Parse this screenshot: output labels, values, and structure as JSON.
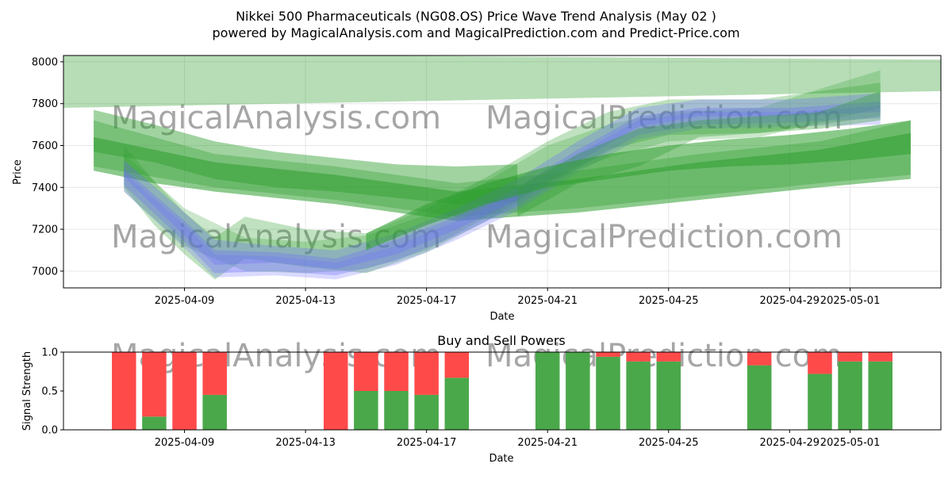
{
  "header": {
    "title": "Nikkei 500 Pharmaceuticals (NG08.OS) Price Wave Trend Analysis (May 02 )",
    "subtitle": "powered by MagicalAnalysis.com and MagicalPrediction.com and Predict-Price.com"
  },
  "watermarks": [
    "MagicalAnalysis.com",
    "MagicalPrediction.com"
  ],
  "colors": {
    "green_band": "#2e9e2e",
    "blue_band": "#6a6aff",
    "buy": "#4aa84a",
    "sell": "#ff4a4a",
    "grid": "#e6e6e6"
  },
  "chart_data": [
    {
      "type": "area",
      "title": "",
      "xlabel": "Date",
      "ylabel": "Price",
      "x_ticks": [
        "2025-04-09",
        "2025-04-13",
        "2025-04-17",
        "2025-04-21",
        "2025-04-25",
        "2025-04-29",
        "2025-05-01"
      ],
      "y_ticks": [
        7000,
        7200,
        7400,
        7600,
        7800,
        8000
      ],
      "xlim": [
        "2025-04-05",
        "2025-05-04"
      ],
      "ylim": [
        6920,
        8030
      ],
      "grid": true,
      "series": [
        {
          "kind": "green",
          "opacity": 0.35,
          "x": [
            "2025-04-05",
            "2025-05-04"
          ],
          "upper": [
            8040,
            8010
          ],
          "lower": [
            7780,
            7860
          ]
        },
        {
          "kind": "green",
          "opacity": 0.55,
          "x": [
            "2025-04-06",
            "2025-04-08",
            "2025-04-10",
            "2025-04-14",
            "2025-04-18",
            "2025-04-22",
            "2025-04-26",
            "2025-04-30",
            "2025-05-03"
          ],
          "upper": [
            7640,
            7580,
            7520,
            7460,
            7380,
            7440,
            7520,
            7580,
            7660
          ],
          "lower": [
            7480,
            7420,
            7380,
            7320,
            7240,
            7280,
            7340,
            7400,
            7440
          ]
        },
        {
          "kind": "green",
          "opacity": 0.35,
          "x": [
            "2025-04-06",
            "2025-04-08",
            "2025-04-10",
            "2025-04-14",
            "2025-04-18",
            "2025-04-22",
            "2025-04-26",
            "2025-04-30",
            "2025-05-03"
          ],
          "upper": [
            7720,
            7640,
            7560,
            7500,
            7420,
            7480,
            7560,
            7620,
            7720
          ],
          "lower": [
            7500,
            7450,
            7400,
            7340,
            7260,
            7300,
            7360,
            7420,
            7460
          ]
        },
        {
          "kind": "green",
          "opacity": 0.45,
          "x": [
            "2025-04-06",
            "2025-04-08",
            "2025-04-10",
            "2025-04-12",
            "2025-04-14",
            "2025-04-16",
            "2025-04-18",
            "2025-04-20"
          ],
          "upper": [
            7770,
            7700,
            7620,
            7570,
            7540,
            7510,
            7500,
            7510
          ],
          "lower": [
            7570,
            7520,
            7440,
            7400,
            7380,
            7350,
            7320,
            7330
          ]
        },
        {
          "kind": "green",
          "opacity": 0.3,
          "x": [
            "2025-04-07",
            "2025-04-08",
            "2025-04-09",
            "2025-04-10",
            "2025-04-11",
            "2025-04-13",
            "2025-04-15",
            "2025-04-17",
            "2025-04-19",
            "2025-04-21",
            "2025-04-23",
            "2025-04-25",
            "2025-04-28",
            "2025-05-02"
          ],
          "upper": [
            7600,
            7430,
            7280,
            7160,
            7260,
            7200,
            7180,
            7300,
            7450,
            7620,
            7760,
            7820,
            7820,
            7900
          ],
          "lower": [
            7400,
            7220,
            7080,
            6960,
            7060,
            7020,
            6990,
            7090,
            7240,
            7420,
            7580,
            7650,
            7660,
            7740
          ]
        },
        {
          "kind": "green",
          "opacity": 0.25,
          "x": [
            "2025-04-07",
            "2025-04-09",
            "2025-04-11",
            "2025-04-13",
            "2025-04-15",
            "2025-04-17",
            "2025-04-19",
            "2025-04-21",
            "2025-04-23",
            "2025-04-25",
            "2025-04-28",
            "2025-05-02"
          ],
          "upper": [
            7560,
            7300,
            7160,
            7140,
            7170,
            7270,
            7430,
            7600,
            7700,
            7760,
            7780,
            7960
          ],
          "lower": [
            7380,
            7120,
            7000,
            6990,
            7010,
            7100,
            7260,
            7430,
            7540,
            7620,
            7640,
            7780
          ]
        },
        {
          "kind": "blue",
          "opacity": 0.3,
          "x": [
            "2025-04-07",
            "2025-04-09",
            "2025-04-10",
            "2025-04-12",
            "2025-04-14",
            "2025-04-16",
            "2025-04-18",
            "2025-04-20",
            "2025-04-22",
            "2025-04-24",
            "2025-04-26",
            "2025-04-29",
            "2025-05-02"
          ],
          "upper": [
            7530,
            7280,
            7150,
            7120,
            7100,
            7180,
            7300,
            7440,
            7620,
            7780,
            7820,
            7820,
            7850
          ],
          "lower": [
            7450,
            7170,
            7030,
            7040,
            7010,
            7080,
            7200,
            7340,
            7520,
            7690,
            7740,
            7740,
            7760
          ]
        },
        {
          "kind": "blue",
          "opacity": 0.3,
          "x": [
            "2025-04-07",
            "2025-04-09",
            "2025-04-10",
            "2025-04-12",
            "2025-04-14",
            "2025-04-16",
            "2025-04-18",
            "2025-04-20",
            "2025-04-22",
            "2025-04-24",
            "2025-04-26",
            "2025-04-29",
            "2025-05-02"
          ],
          "upper": [
            7490,
            7240,
            7100,
            7090,
            7060,
            7150,
            7260,
            7400,
            7580,
            7740,
            7780,
            7780,
            7810
          ],
          "lower": [
            7410,
            7140,
            6990,
            7000,
            6980,
            7050,
            7170,
            7310,
            7490,
            7650,
            7700,
            7710,
            7730
          ]
        },
        {
          "kind": "blue",
          "opacity": 0.25,
          "x": [
            "2025-04-07",
            "2025-04-09",
            "2025-04-10",
            "2025-04-12",
            "2025-04-14",
            "2025-04-16",
            "2025-04-18",
            "2025-04-20",
            "2025-04-22",
            "2025-04-24",
            "2025-04-26",
            "2025-04-29",
            "2025-05-02"
          ],
          "upper": [
            7470,
            7220,
            7080,
            7070,
            7040,
            7120,
            7240,
            7380,
            7560,
            7720,
            7760,
            7760,
            7790
          ],
          "lower": [
            7380,
            7110,
            6970,
            6980,
            6960,
            7030,
            7150,
            7290,
            7470,
            7630,
            7680,
            7690,
            7700
          ]
        },
        {
          "kind": "green",
          "opacity": 0.55,
          "x": [
            "2025-04-15",
            "2025-04-17",
            "2025-04-19",
            "2025-04-21",
            "2025-04-23",
            "2025-04-25",
            "2025-04-27",
            "2025-04-29",
            "2025-05-01",
            "2025-05-03"
          ],
          "upper": [
            7180,
            7320,
            7420,
            7500,
            7560,
            7600,
            7630,
            7650,
            7680,
            7720
          ],
          "lower": [
            7100,
            7220,
            7320,
            7400,
            7440,
            7480,
            7500,
            7510,
            7530,
            7560
          ]
        },
        {
          "kind": "green",
          "opacity": 0.35,
          "x": [
            "2025-04-20",
            "2025-04-22",
            "2025-04-24",
            "2025-04-26",
            "2025-04-28",
            "2025-04-30",
            "2025-05-02"
          ],
          "upper": [
            7400,
            7560,
            7680,
            7720,
            7740,
            7760,
            7860
          ],
          "lower": [
            7260,
            7420,
            7500,
            7640,
            7660,
            7680,
            7720
          ]
        }
      ]
    },
    {
      "type": "bar",
      "title": "Buy and Sell Powers",
      "xlabel": "Date",
      "ylabel": "Signal Strength",
      "x_ticks": [
        "2025-04-09",
        "2025-04-13",
        "2025-04-17",
        "2025-04-21",
        "2025-04-25",
        "2025-04-29",
        "2025-05-01"
      ],
      "y_ticks": [
        "0.0",
        "0.5",
        "1.0"
      ],
      "xlim": [
        "2025-04-05",
        "2025-05-04"
      ],
      "ylim": [
        0,
        1
      ],
      "x": [
        "2025-04-07",
        "2025-04-08",
        "2025-04-09",
        "2025-04-10",
        "2025-04-14",
        "2025-04-15",
        "2025-04-16",
        "2025-04-17",
        "2025-04-18",
        "2025-04-21",
        "2025-04-22",
        "2025-04-23",
        "2025-04-24",
        "2025-04-25",
        "2025-04-28",
        "2025-04-30",
        "2025-05-01",
        "2025-05-02"
      ],
      "series": [
        {
          "name": "Buy",
          "values": [
            0.0,
            0.17,
            0.0,
            0.45,
            0.0,
            0.5,
            0.5,
            0.45,
            0.67,
            1.0,
            1.0,
            0.94,
            0.88,
            0.88,
            0.83,
            0.72,
            0.88,
            0.88
          ]
        },
        {
          "name": "Sell",
          "values": [
            1.0,
            0.83,
            1.0,
            0.55,
            1.0,
            0.5,
            0.5,
            0.55,
            0.33,
            0.0,
            0.0,
            0.06,
            0.12,
            0.12,
            0.17,
            0.28,
            0.12,
            0.12
          ]
        }
      ]
    }
  ]
}
